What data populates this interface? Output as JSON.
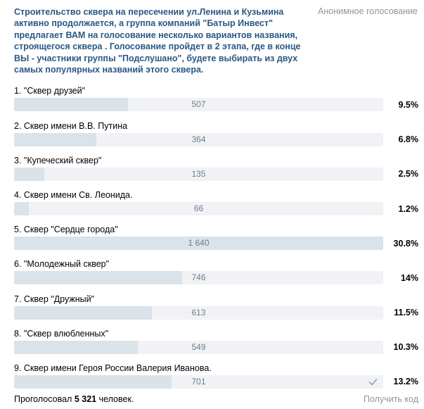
{
  "poll": {
    "question": "Строительство сквера на пересечении ул.Ленина и Кузьмина активно продолжается, а группа компаний \"Батыр Инвест\" предлагает ВАМ на голосование несколько вариантов названия, строящегося сквера . Голосование пройдет в 2 этапа, где в конце ВЫ - участники группы \"Подслушано\", будете выбирать из двух самых популярных названий этого сквера.",
    "type_label": "Анонимное голосование",
    "options": [
      {
        "label": "1. \"Сквер друзей\"",
        "count": "507",
        "percent": "9.5%",
        "fill": 0.309,
        "voted": false
      },
      {
        "label": "2. Сквер имени В.В. Путина",
        "count": "364",
        "percent": "6.8%",
        "fill": 0.222,
        "voted": false
      },
      {
        "label": "3. \"Купеческий сквер\"",
        "count": "135",
        "percent": "2.5%",
        "fill": 0.082,
        "voted": false
      },
      {
        "label": "4. Сквер имени Св. Леонида.",
        "count": "66",
        "percent": "1.2%",
        "fill": 0.04,
        "voted": false
      },
      {
        "label": "5. Сквер \"Сердце города\"",
        "count": "1 640",
        "percent": "30.8%",
        "fill": 1.0,
        "voted": false
      },
      {
        "label": "6. \"Молодежный сквер\"",
        "count": "746",
        "percent": "14%",
        "fill": 0.455,
        "voted": false
      },
      {
        "label": "7. Сквер \"Дружный\"",
        "count": "613",
        "percent": "11.5%",
        "fill": 0.374,
        "voted": false
      },
      {
        "label": "8. \"Сквер влюбленных\"",
        "count": "549",
        "percent": "10.3%",
        "fill": 0.335,
        "voted": false
      },
      {
        "label": "9. Сквер имени Героя России Валерия Иванова.",
        "count": "701",
        "percent": "13.2%",
        "fill": 0.427,
        "voted": true
      }
    ],
    "footer": {
      "prefix": "Проголосовал",
      "total": "5 321",
      "suffix": "человек.",
      "get_code": "Получить код"
    }
  },
  "colors": {
    "question": "#2a5885",
    "muted": "#939393",
    "bar_track": "#f0f2f5",
    "bar_fill": "#dae2ea",
    "bar_count": "#6f7d8c"
  },
  "icons": {
    "voted": "check-icon"
  }
}
